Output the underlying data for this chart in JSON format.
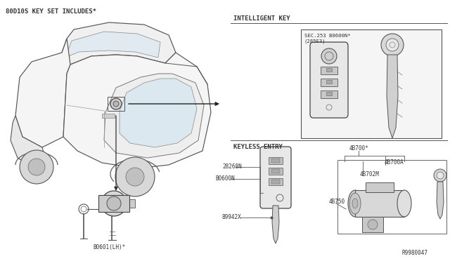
{
  "bg_color": "#ffffff",
  "title": "80D10S KEY SET INCLUDES*",
  "label_ik": "INTELLIGENT KEY",
  "label_ke": "KEYLESS ENTRY",
  "label_ik_ref": "SEC.253 B0600N*\n(285E3)",
  "label_b06014": "B0601(LH)*",
  "label_28268n": "28268N",
  "label_b0600n": "B0600N",
  "label_89942x": "89942X",
  "label_48700": "4B700*",
  "label_48700a": "4B700A",
  "label_48702m": "4B702M",
  "label_48750": "4B750",
  "label_r9980047": "R9980047",
  "lc": "#555555",
  "tc": "#333333",
  "fs_title": 6.5,
  "fs_label": 5.5,
  "fs_ref": 5.5
}
